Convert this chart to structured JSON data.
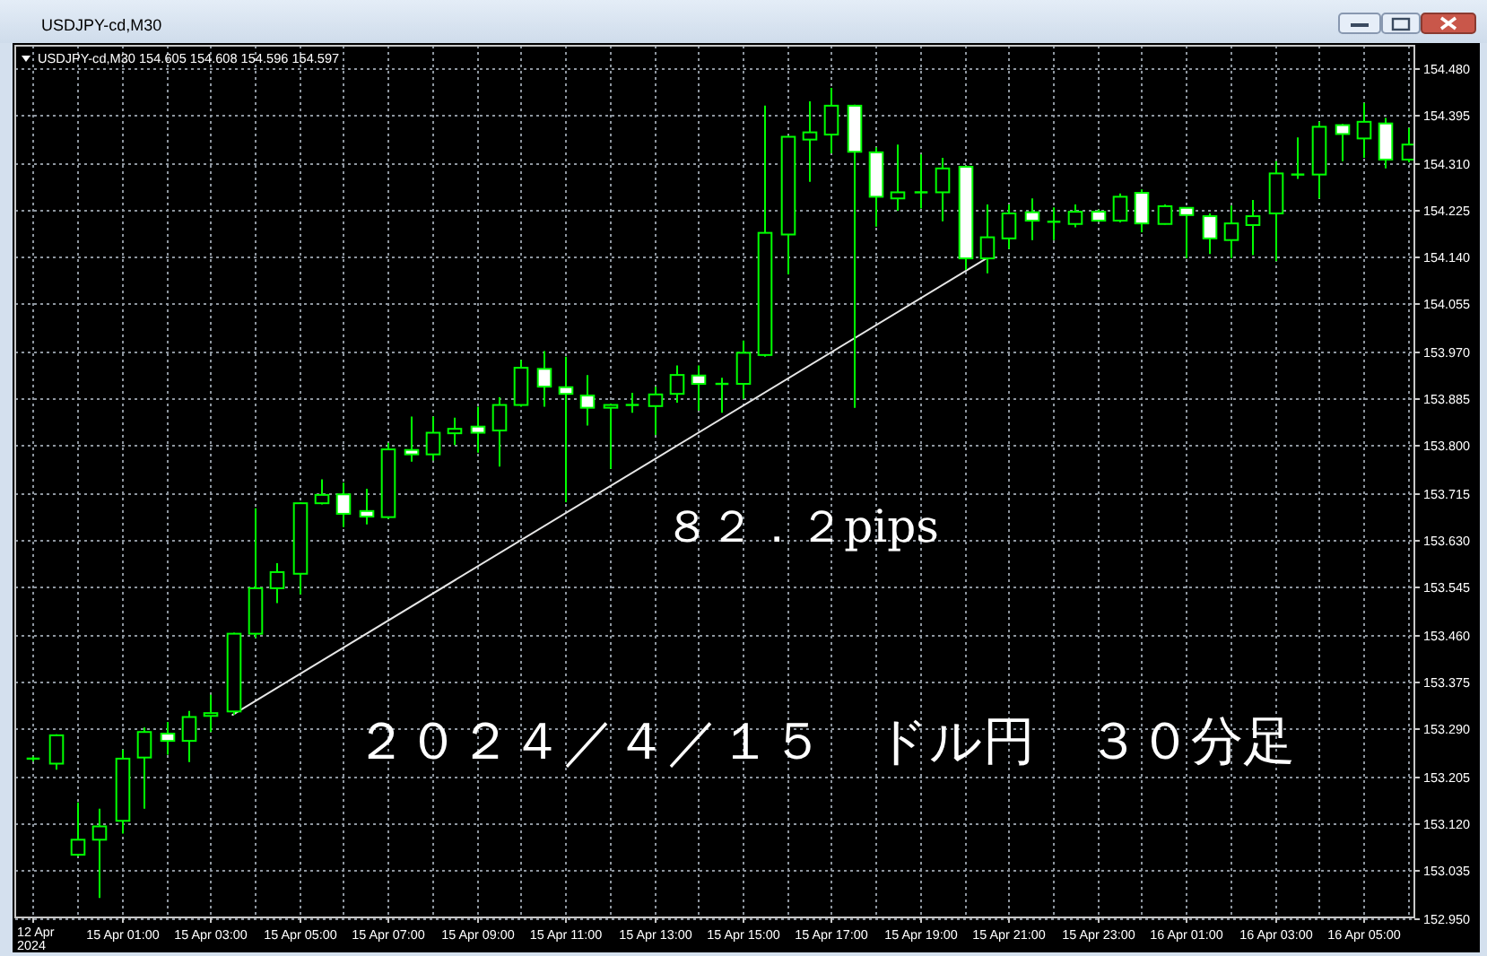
{
  "chart_data": {
    "type": "candlestick",
    "title": "USDJPY-cd,M30",
    "subtitle": "USDJPY-cd,M30 154.605 154.608 154.596 154.597",
    "categories": [
      "12 Apr 2024",
      null,
      null,
      null,
      "15 Apr 01:00",
      null,
      null,
      null,
      "15 Apr 03:00",
      null,
      null,
      null,
      "15 Apr 05:00",
      null,
      null,
      null,
      "15 Apr 07:00",
      null,
      null,
      null,
      "15 Apr 09:00",
      null,
      null,
      null,
      "15 Apr 11:00",
      null,
      null,
      null,
      "15 Apr 13:00",
      null,
      null,
      null,
      "15 Apr 15:00",
      null,
      null,
      null,
      "15 Apr 17:00",
      null,
      null,
      null,
      "15 Apr 19:00",
      null,
      null,
      null,
      "15 Apr 21:00",
      null,
      null,
      null,
      "15 Apr 23:00",
      null,
      null,
      null,
      "16 Apr 01:00",
      null,
      null,
      null,
      "16 Apr 03:00",
      null,
      null,
      null,
      "16 Apr 05:00",
      null,
      null
    ],
    "ohlc": [
      [
        153.236,
        153.24,
        153.231,
        153.236
      ],
      [
        153.227,
        153.28,
        153.216,
        153.278
      ],
      [
        153.063,
        153.157,
        153.06,
        153.09
      ],
      [
        153.09,
        153.146,
        152.985,
        153.114
      ],
      [
        153.124,
        153.252,
        153.101,
        153.236
      ],
      [
        153.238,
        153.292,
        153.146,
        153.284
      ],
      [
        153.281,
        153.302,
        153.243,
        153.268
      ],
      [
        153.268,
        153.322,
        153.23,
        153.311
      ],
      [
        153.313,
        153.351,
        153.284,
        153.318
      ],
      [
        153.321,
        153.463,
        153.315,
        153.461
      ],
      [
        153.461,
        153.687,
        153.453,
        153.543
      ],
      [
        153.543,
        153.588,
        153.516,
        153.572
      ],
      [
        153.569,
        153.698,
        153.532,
        153.696
      ],
      [
        153.696,
        153.739,
        153.694,
        153.711
      ],
      [
        153.712,
        153.733,
        153.653,
        153.677
      ],
      [
        153.682,
        153.722,
        153.658,
        153.672
      ],
      [
        153.671,
        153.805,
        153.668,
        153.793
      ],
      [
        153.792,
        153.852,
        153.771,
        153.784
      ],
      [
        153.784,
        153.852,
        153.773,
        153.823
      ],
      [
        153.822,
        153.85,
        153.801,
        153.83
      ],
      [
        153.834,
        153.87,
        153.787,
        153.823
      ],
      [
        153.827,
        153.887,
        153.762,
        153.873
      ],
      [
        153.873,
        153.954,
        153.87,
        153.94
      ],
      [
        153.938,
        153.97,
        153.87,
        153.906
      ],
      [
        153.905,
        153.96,
        153.698,
        153.893
      ],
      [
        153.89,
        153.927,
        153.836,
        153.868
      ],
      [
        153.868,
        153.875,
        153.758,
        153.873
      ],
      [
        153.873,
        153.895,
        153.859,
        153.873
      ],
      [
        153.871,
        153.906,
        153.819,
        153.892
      ],
      [
        153.893,
        153.944,
        153.877,
        153.927
      ],
      [
        153.926,
        153.944,
        153.863,
        153.911
      ],
      [
        153.911,
        153.922,
        153.859,
        153.911
      ],
      [
        153.911,
        153.989,
        153.884,
        153.967
      ],
      [
        153.963,
        154.412,
        153.96,
        154.183
      ],
      [
        154.18,
        154.358,
        154.108,
        154.356
      ],
      [
        154.351,
        154.42,
        154.275,
        154.364
      ],
      [
        154.36,
        154.444,
        154.326,
        154.412
      ],
      [
        154.412,
        154.414,
        153.868,
        154.329
      ],
      [
        154.328,
        154.337,
        154.194,
        154.248
      ],
      [
        154.245,
        154.342,
        154.223,
        154.256
      ],
      [
        154.256,
        154.324,
        154.227,
        154.256
      ],
      [
        154.256,
        154.318,
        154.204,
        154.299
      ],
      [
        154.302,
        154.304,
        154.116,
        154.137
      ],
      [
        154.137,
        154.234,
        154.11,
        154.175
      ],
      [
        154.173,
        154.234,
        154.154,
        154.218
      ],
      [
        154.22,
        154.245,
        154.17,
        154.205
      ],
      [
        154.203,
        154.229,
        154.17,
        154.203
      ],
      [
        154.199,
        154.234,
        154.193,
        154.221
      ],
      [
        154.221,
        154.225,
        154.203,
        154.205
      ],
      [
        154.205,
        154.254,
        154.202,
        154.248
      ],
      [
        154.255,
        154.261,
        154.184,
        154.2
      ],
      [
        154.199,
        154.234,
        154.198,
        154.231
      ],
      [
        154.228,
        154.229,
        154.137,
        154.215
      ],
      [
        154.213,
        154.218,
        154.145,
        154.173
      ],
      [
        154.17,
        154.232,
        154.137,
        154.2
      ],
      [
        154.197,
        154.242,
        154.143,
        154.213
      ],
      [
        154.218,
        154.312,
        154.132,
        154.29
      ],
      [
        154.288,
        154.355,
        154.28,
        154.288
      ],
      [
        154.288,
        154.383,
        154.245,
        154.374
      ],
      [
        154.377,
        154.379,
        154.312,
        154.361
      ],
      [
        154.353,
        154.417,
        154.318,
        154.383
      ],
      [
        154.38,
        154.39,
        154.299,
        154.315
      ],
      [
        154.315,
        154.372,
        154.31,
        154.342
      ]
    ],
    "color": "#00ff00",
    "colors": [
      null,
      "#000000",
      "#000000",
      "#000000",
      "#000000",
      "#000000",
      "#ffffff",
      "#000000",
      "#000000",
      "#000000",
      "#000000",
      "#000000",
      "#000000",
      "#000000",
      "#ffffff",
      "#ffffff",
      "#000000",
      "#ffffff",
      "#000000",
      "#000000",
      "#ffffff",
      "#000000",
      "#000000",
      "#ffffff",
      "#ffffff",
      "#ffffff",
      "#000000",
      null,
      "#000000",
      "#000000",
      "#ffffff",
      null,
      "#000000",
      "#000000",
      "#000000",
      "#000000",
      "#000000",
      "#ffffff",
      "#ffffff",
      "#000000",
      null,
      "#000000",
      "#ffffff",
      "#000000",
      "#000000",
      "#ffffff",
      null,
      "#000000",
      "#ffffff",
      "#000000",
      "#ffffff",
      "#000000",
      "#ffffff",
      "#ffffff",
      "#000000",
      "#000000",
      "#000000",
      null,
      "#000000",
      "#ffffff",
      "#000000",
      "#ffffff",
      "#000000"
    ],
    "series": [
      {
        "type": "line",
        "color": "#e6e6e6",
        "values": [
          null,
          null,
          null,
          null,
          null,
          null,
          null,
          null,
          null,
          153.315,
          null,
          null,
          null,
          null,
          null,
          null,
          null,
          null,
          null,
          null,
          null,
          null,
          null,
          null,
          null,
          null,
          null,
          null,
          null,
          null,
          null,
          null,
          null,
          null,
          null,
          null,
          null,
          null,
          null,
          null,
          null,
          null,
          null,
          154.137,
          null,
          null,
          null,
          null,
          null,
          null,
          null,
          null,
          null,
          null,
          null,
          null,
          null,
          null,
          null,
          null,
          null,
          null,
          null
        ]
      }
    ],
    "annotations": [
      "８２．２pips",
      "２０２４／４／１５　ドル円　３０分足"
    ],
    "ylim": [
      152.95,
      154.52
    ],
    "yticks": [
      {
        "value": 152.95,
        "label": "152.950"
      },
      153.035,
      {
        "value": 153.12,
        "label": "153.120"
      },
      153.205,
      {
        "value": 153.29,
        "label": "153.290"
      },
      153.375,
      {
        "value": 153.46,
        "label": "153.460"
      },
      153.545,
      {
        "value": 153.63,
        "label": "153.630"
      },
      153.715,
      {
        "value": 153.8,
        "label": "153.800"
      },
      153.885,
      {
        "value": 153.97,
        "label": "153.970"
      },
      154.055,
      {
        "value": 154.14,
        "label": "154.140"
      },
      154.225,
      {
        "value": 154.31,
        "label": "154.310"
      },
      154.395,
      {
        "value": 154.48,
        "label": "154.480"
      }
    ],
    "grid": true
  }
}
